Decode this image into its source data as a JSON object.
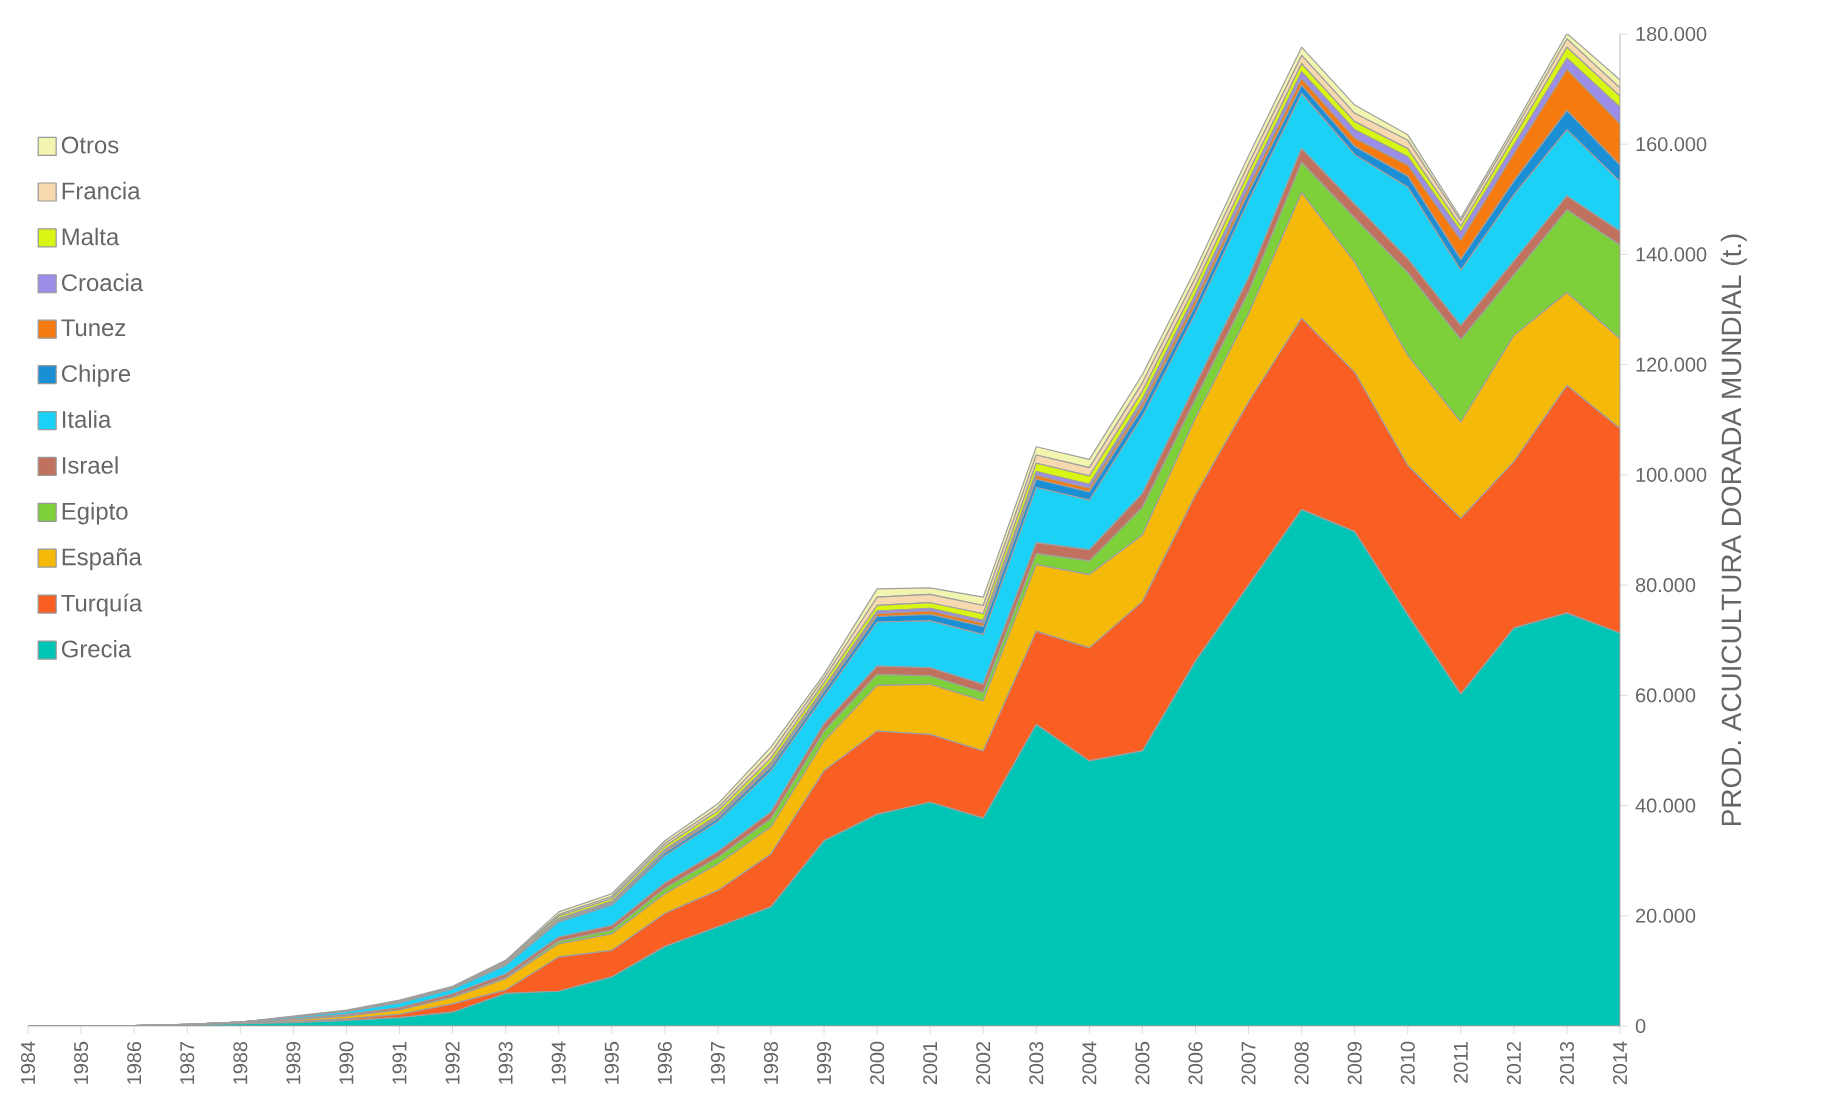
{
  "chart_data": {
    "type": "area",
    "stacked": true,
    "ylabel": "PROD. ACUICULTURA DORADA MUNDIAL (t.)",
    "legend": "left",
    "x": [
      1984,
      1985,
      1986,
      1987,
      1988,
      1989,
      1990,
      1991,
      1992,
      1993,
      1994,
      1995,
      1996,
      1997,
      1998,
      1999,
      2000,
      2001,
      2002,
      2003,
      2004,
      2005,
      2006,
      2007,
      2008,
      2009,
      2010,
      2011,
      2012,
      2013,
      2014
    ],
    "xlim": [
      1984,
      2014
    ],
    "xticks": [
      1984,
      1985,
      1986,
      1987,
      1988,
      1989,
      1990,
      1991,
      1992,
      1993,
      1994,
      1995,
      1996,
      1997,
      1998,
      1999,
      2000,
      2001,
      2002,
      2003,
      2004,
      2005,
      2006,
      2007,
      2008,
      2009,
      2010,
      2011,
      2012,
      2013,
      2014
    ],
    "ylim": [
      0,
      180000
    ],
    "yticks": [
      {
        "value": 0,
        "label": "0"
      },
      {
        "value": 20000,
        "label": "20.000"
      },
      {
        "value": 40000,
        "label": "40.000"
      },
      {
        "value": 60000,
        "label": "60.000"
      },
      {
        "value": 80000,
        "label": "80.000"
      },
      {
        "value": 100000,
        "label": "100.000"
      },
      {
        "value": 120000,
        "label": "120.000"
      },
      {
        "value": 140000,
        "label": "140.000"
      },
      {
        "value": 160000,
        "label": "160.000"
      },
      {
        "value": 180000,
        "label": "180.000"
      }
    ],
    "series": [
      {
        "name": "Grecia",
        "color": "#00c4b4",
        "values": [
          0,
          0,
          50,
          200,
          400,
          600,
          1000,
          1500,
          2500,
          5900,
          6300,
          8900,
          14400,
          18000,
          21600,
          33600,
          38400,
          40600,
          37700,
          54700,
          48100,
          49900,
          66200,
          80000,
          93700,
          89700,
          74600,
          60200,
          72200,
          74900,
          71300
        ]
      },
      {
        "name": "Turquía",
        "color": "#f95f22",
        "values": [
          0,
          0,
          0,
          0,
          0,
          200,
          300,
          600,
          1500,
          600,
          6200,
          4800,
          6000,
          6600,
          9600,
          12700,
          15100,
          12300,
          12200,
          16900,
          20500,
          27100,
          30100,
          33200,
          34700,
          28900,
          27100,
          31900,
          30200,
          41300,
          37100
        ]
      },
      {
        "name": "España",
        "color": "#f5b90a",
        "values": [
          0,
          0,
          0,
          0,
          100,
          300,
          500,
          800,
          1200,
          2100,
          2400,
          3000,
          3600,
          4800,
          4900,
          5400,
          8300,
          9100,
          9100,
          12100,
          13300,
          12100,
          14000,
          16000,
          22800,
          20000,
          20000,
          17500,
          22900,
          16900,
          16300
        ]
      },
      {
        "name": "Egipto",
        "color": "#7ed03a",
        "values": [
          0,
          0,
          0,
          0,
          0,
          0,
          0,
          0,
          100,
          200,
          500,
          700,
          1000,
          1200,
          1500,
          1800,
          2000,
          1500,
          1500,
          2000,
          2500,
          5000,
          3500,
          4000,
          5500,
          8000,
          15000,
          15000,
          11000,
          15000,
          17000
        ]
      },
      {
        "name": "Israel",
        "color": "#c0725e",
        "values": [
          0,
          0,
          0,
          0,
          0,
          200,
          300,
          400,
          500,
          600,
          700,
          800,
          900,
          1000,
          1200,
          1300,
          1500,
          1500,
          1500,
          2000,
          2000,
          2500,
          2500,
          2500,
          2500,
          2500,
          2500,
          2500,
          2500,
          2500,
          2500
        ]
      },
      {
        "name": "Italia",
        "color": "#1bd1f5",
        "values": [
          0,
          0,
          0,
          100,
          200,
          300,
          500,
          900,
          900,
          1600,
          2800,
          3700,
          5000,
          5500,
          7500,
          5000,
          8000,
          8500,
          9000,
          10000,
          9000,
          14000,
          13000,
          14000,
          10000,
          9000,
          13000,
          10000,
          12000,
          12000,
          9000
        ]
      },
      {
        "name": "Chipre",
        "color": "#1a8fd6",
        "values": [
          0,
          0,
          0,
          0,
          0,
          0,
          0,
          0,
          0,
          100,
          200,
          300,
          500,
          600,
          700,
          800,
          1000,
          1200,
          1500,
          1500,
          1500,
          1500,
          1500,
          1500,
          1500,
          1500,
          2000,
          2000,
          2500,
          3500,
          3000
        ]
      },
      {
        "name": "Tunez",
        "color": "#f57a10",
        "values": [
          0,
          0,
          0,
          0,
          0,
          0,
          0,
          0,
          0,
          100,
          200,
          200,
          300,
          300,
          400,
          400,
          500,
          600,
          600,
          700,
          700,
          800,
          1000,
          1000,
          1200,
          1500,
          2000,
          3500,
          5000,
          7500,
          7500
        ]
      },
      {
        "name": "Croacia",
        "color": "#9b8de8",
        "values": [
          0,
          0,
          0,
          0,
          0,
          0,
          0,
          0,
          0,
          0,
          200,
          200,
          300,
          300,
          400,
          400,
          500,
          500,
          500,
          700,
          700,
          800,
          1000,
          1200,
          1200,
          1500,
          1500,
          1500,
          1500,
          2000,
          3000
        ]
      },
      {
        "name": "Malta",
        "color": "#d8f514",
        "values": [
          0,
          0,
          0,
          0,
          0,
          0,
          0,
          100,
          200,
          300,
          400,
          500,
          600,
          700,
          800,
          900,
          1000,
          1000,
          1200,
          1500,
          1500,
          1500,
          1500,
          1500,
          1500,
          1500,
          1500,
          1000,
          1500,
          2000,
          2000
        ]
      },
      {
        "name": "Francia",
        "color": "#f7d9b0",
        "values": [
          0,
          0,
          0,
          0,
          0,
          0,
          100,
          200,
          200,
          200,
          300,
          400,
          500,
          600,
          1000,
          800,
          1500,
          1500,
          1500,
          1500,
          1500,
          1500,
          1500,
          1500,
          1500,
          1500,
          1500,
          1000,
          1000,
          1500,
          1500
        ]
      },
      {
        "name": "Otros",
        "color": "#f2f5b0",
        "values": [
          0,
          0,
          0,
          0,
          0,
          200,
          200,
          200,
          100,
          200,
          500,
          500,
          500,
          700,
          1000,
          700,
          1500,
          1200,
          1500,
          1500,
          1500,
          1500,
          1500,
          1500,
          1500,
          1500,
          1000,
          500,
          800,
          1000,
          1500
        ]
      }
    ]
  }
}
